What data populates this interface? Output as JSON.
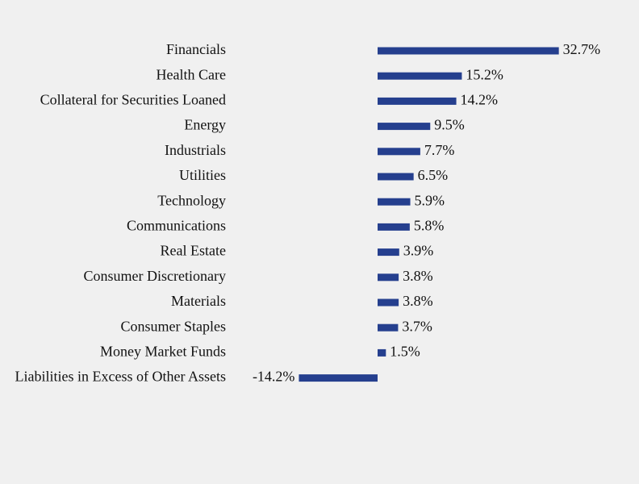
{
  "chart_data": {
    "type": "bar",
    "orientation": "horizontal",
    "categories": [
      "Financials",
      "Health Care",
      "Collateral for Securities Loaned",
      "Energy",
      "Industrials",
      "Utilities",
      "Technology",
      "Communications",
      "Real Estate",
      "Consumer Discretionary",
      "Materials",
      "Consumer Staples",
      "Money Market Funds",
      "Liabilities in Excess of Other Assets"
    ],
    "values": [
      32.7,
      15.2,
      14.2,
      9.5,
      7.7,
      6.5,
      5.9,
      5.8,
      3.9,
      3.8,
      3.8,
      3.7,
      1.5,
      -14.2
    ],
    "value_labels": [
      "32.7%",
      "15.2%",
      "14.2%",
      "9.5%",
      "7.7%",
      "6.5%",
      "5.9%",
      "5.8%",
      "3.9%",
      "3.8%",
      "3.8%",
      "3.7%",
      "1.5%",
      "-14.2%"
    ],
    "title": "",
    "xlabel": "",
    "ylabel": "",
    "xlim": [
      -20,
      40
    ],
    "grid": false,
    "legend": "none",
    "bar_color": "#253f8e"
  }
}
